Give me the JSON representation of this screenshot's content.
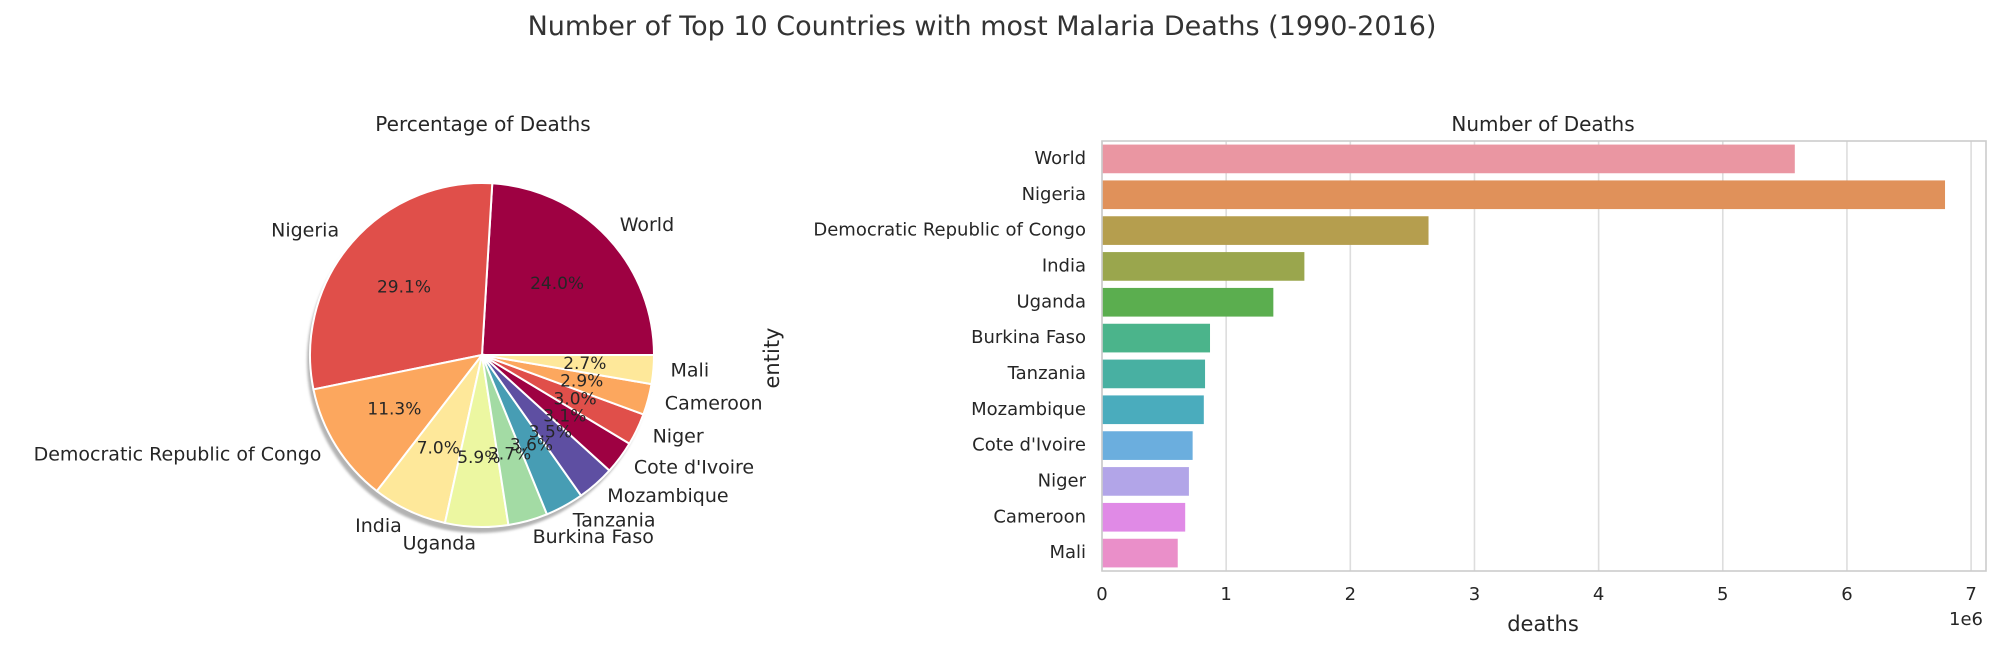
{
  "figure": {
    "title": "Number of Top 10 Countries with most Malaria Deaths (1990-2016)"
  },
  "chart_data": [
    {
      "type": "pie",
      "title": "Percentage of Deaths",
      "shadow": true,
      "categories": [
        "World",
        "Nigeria",
        "Democratic Republic of Congo",
        "India",
        "Uganda",
        "Burkina Faso",
        "Tanzania",
        "Mozambique",
        "Cote d'Ivoire",
        "Niger",
        "Cameroon",
        "Mali"
      ],
      "values": [
        24.0,
        29.1,
        11.3,
        7.0,
        5.9,
        3.7,
        3.6,
        3.5,
        3.1,
        3.0,
        2.9,
        2.7
      ],
      "percent_labels": [
        "24.0%",
        "29.1%",
        "11.3%",
        "7.0%",
        "5.9%",
        "3.7%",
        "3.6%",
        "3.5%",
        "3.1%",
        "3.0%",
        "2.9%",
        "2.7%"
      ],
      "colors": [
        "#9e0142",
        "#e04f4a",
        "#fca75e",
        "#fee89a",
        "#ecf7a1",
        "#a3dba4",
        "#479db4",
        "#5e4fa2",
        "#9e0142",
        "#e04f4a",
        "#fca75e",
        "#fee89a"
      ]
    },
    {
      "type": "bar",
      "orientation": "horizontal",
      "title": "Number of Deaths",
      "xlabel": "deaths",
      "ylabel": "entity",
      "x_offset_text": "1e6",
      "categories": [
        "World",
        "Nigeria",
        "Democratic Republic of Congo",
        "India",
        "Uganda",
        "Burkina Faso",
        "Tanzania",
        "Mozambique",
        "Cote d'Ivoire",
        "Niger",
        "Cameroon",
        "Mali"
      ],
      "values": [
        5.58,
        6.79,
        2.63,
        1.63,
        1.38,
        0.87,
        0.83,
        0.82,
        0.73,
        0.7,
        0.67,
        0.61
      ],
      "xlim": [
        0,
        7.12
      ],
      "xticks": [
        0,
        1,
        2,
        3,
        4,
        5,
        6,
        7
      ],
      "grid": "vertical",
      "colors": [
        "#ea96a2",
        "#e0915a",
        "#b59e4e",
        "#9aa64d",
        "#5bae4f",
        "#4bb48b",
        "#48b0a2",
        "#4aacbd",
        "#6baede",
        "#b2a5e8",
        "#e08ae6",
        "#ea8fc9"
      ]
    }
  ]
}
